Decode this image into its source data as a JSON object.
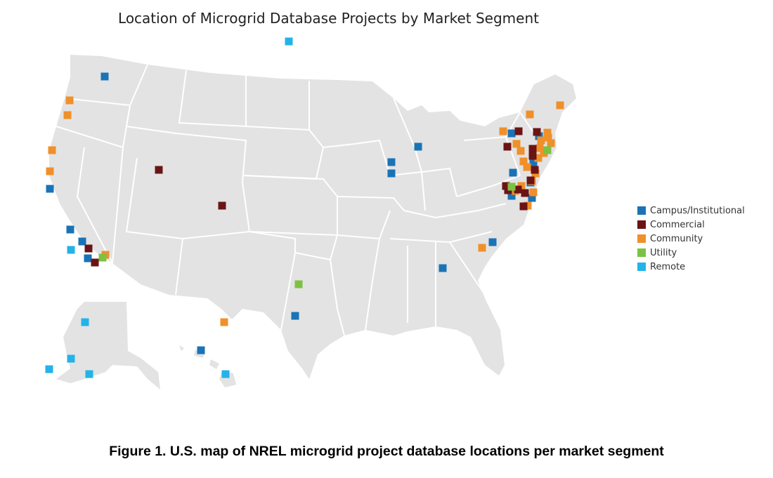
{
  "title": "Location of Microgrid Database Projects by Market Segment",
  "caption": "Figure 1. U.S. map of NREL microgrid project database locations per market segment",
  "map_colors": {
    "land": "#e3e3e3",
    "borders": "#ffffff"
  },
  "legend": [
    {
      "key": "campus",
      "label": "Campus/Institutional",
      "color": "#1a73b6"
    },
    {
      "key": "commercial",
      "label": "Commercial",
      "color": "#6b1414"
    },
    {
      "key": "community",
      "label": "Community",
      "color": "#f0902a"
    },
    {
      "key": "utility",
      "label": "Utility",
      "color": "#7cc242"
    },
    {
      "key": "remote",
      "label": "Remote",
      "color": "#23b3e8"
    }
  ],
  "markers": {
    "campus": 19,
    "commercial": 16,
    "community": 27,
    "utility": 3,
    "remote": 8
  }
}
